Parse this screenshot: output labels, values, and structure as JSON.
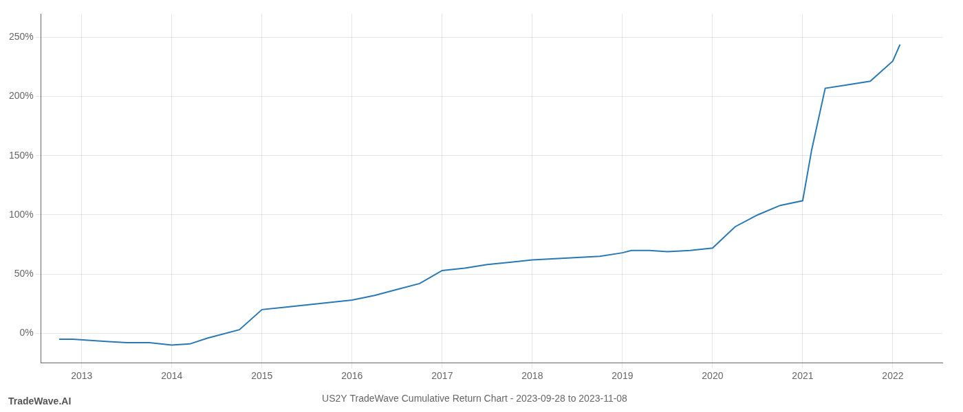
{
  "chart_data": {
    "type": "line",
    "title": "US2Y TradeWave Cumulative Return Chart - 2023-09-28 to 2023-11-08",
    "annotations": [
      "TradeWave.AI"
    ],
    "color": "#2878b5",
    "grid": true,
    "x": [
      2012.75,
      2012.9,
      2013.1,
      2013.3,
      2013.5,
      2013.75,
      2014.0,
      2014.2,
      2014.4,
      2014.75,
      2015.0,
      2015.25,
      2015.5,
      2015.75,
      2016.0,
      2016.25,
      2016.5,
      2016.75,
      2017.0,
      2017.25,
      2017.5,
      2017.75,
      2018.0,
      2018.25,
      2018.5,
      2018.75,
      2019.0,
      2019.1,
      2019.3,
      2019.5,
      2019.75,
      2020.0,
      2020.25,
      2020.5,
      2020.75,
      2021.0,
      2021.1,
      2021.25,
      2021.5,
      2021.75,
      2022.0,
      2022.08
    ],
    "values": [
      -5,
      -5,
      -6,
      -7,
      -8,
      -8,
      -10,
      -9,
      -4,
      3,
      20,
      22,
      24,
      26,
      28,
      32,
      37,
      42,
      53,
      55,
      58,
      60,
      62,
      63,
      64,
      65,
      68,
      70,
      70,
      69,
      70,
      72,
      90,
      100,
      108,
      112,
      155,
      207,
      210,
      213,
      230,
      244
    ],
    "xlim": [
      2012.55,
      2022.55
    ],
    "xticks": [
      2013,
      2014,
      2015,
      2016,
      2017,
      2018,
      2019,
      2020,
      2021,
      2022
    ],
    "ylim": [
      -25,
      270
    ],
    "yticks": [
      {
        "value": 0,
        "label": "0%"
      },
      {
        "value": 50,
        "label": "50%"
      },
      {
        "value": 100,
        "label": "100%"
      },
      {
        "value": 150,
        "label": "150%"
      },
      {
        "value": 200,
        "label": "200%"
      },
      {
        "value": 250,
        "label": "250%"
      }
    ]
  }
}
